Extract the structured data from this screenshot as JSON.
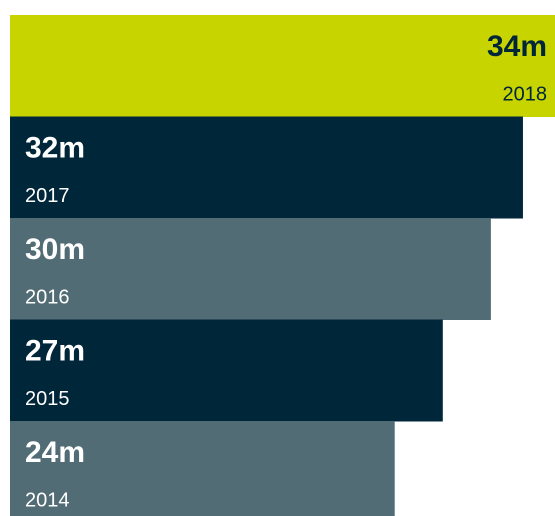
{
  "chart_data": {
    "type": "bar",
    "orientation": "horizontal",
    "categories": [
      "2018",
      "2017",
      "2016",
      "2015",
      "2014"
    ],
    "values": [
      34,
      32,
      30,
      27,
      24
    ],
    "value_labels": [
      "34m",
      "32m",
      "30m",
      "27m",
      "24m"
    ],
    "colors": [
      "#c8d400",
      "#00263a",
      "#526c75",
      "#00263a",
      "#526c75"
    ]
  }
}
